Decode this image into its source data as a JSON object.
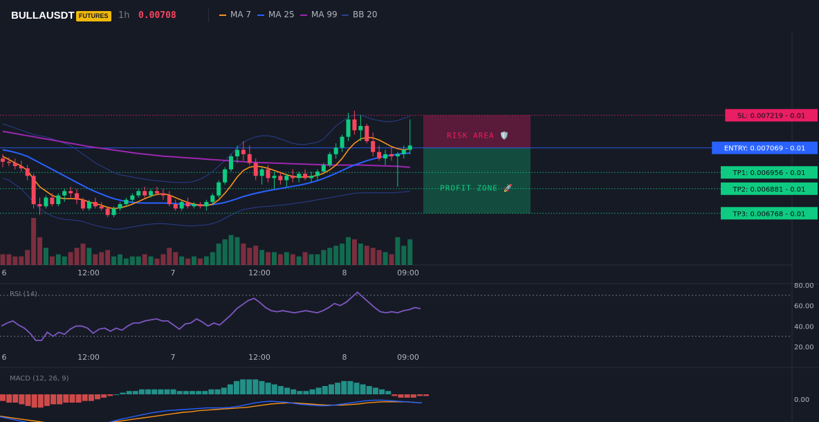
{
  "header": {
    "symbol": "BULLAUSDT",
    "badge": "FUTURES",
    "timeframe": "1h",
    "last_price": "0.00708"
  },
  "legend": [
    {
      "name": "MA 7",
      "color": "#f7931a"
    },
    {
      "name": "MA 25",
      "color": "#2962ff"
    },
    {
      "name": "MA 99",
      "color": "#9c27b0"
    },
    {
      "name": "BB 20",
      "color": "#2a3f8f"
    }
  ],
  "colors": {
    "up": "#0ecb81",
    "down": "#f6465d",
    "background": "#161a25",
    "grid": "#1e222d",
    "sl": "#e91e63",
    "entry": "#2962ff",
    "tp": "#0ecb81"
  },
  "chart_data": {
    "type": "candlestick",
    "x_ticks": [
      "6",
      "12:00",
      "7",
      "12:00",
      "8",
      "09:00"
    ],
    "price_range": [
      0.00653,
      0.0076
    ],
    "candles": [
      [
        0.00702,
        0.00704,
        0.00698,
        0.007005
      ],
      [
        0.007005,
        0.007025,
        0.006985,
        0.007
      ],
      [
        0.007,
        0.00702,
        0.00697,
        0.006985
      ],
      [
        0.006985,
        0.00701,
        0.00696,
        0.006975
      ],
      [
        0.006975,
        0.00699,
        0.00692,
        0.00694
      ],
      [
        0.00694,
        0.00695,
        0.00679,
        0.00681
      ],
      [
        0.00681,
        0.00684,
        0.00676,
        0.0068
      ],
      [
        0.0068,
        0.00685,
        0.00679,
        0.00684
      ],
      [
        0.00684,
        0.00686,
        0.0068,
        0.00681
      ],
      [
        0.00681,
        0.00686,
        0.0068,
        0.00685
      ],
      [
        0.00685,
        0.00688,
        0.00682,
        0.00687
      ],
      [
        0.00687,
        0.00689,
        0.00684,
        0.00686
      ],
      [
        0.00686,
        0.00688,
        0.00681,
        0.00683
      ],
      [
        0.00683,
        0.00684,
        0.00678,
        0.00679
      ],
      [
        0.00679,
        0.00683,
        0.00678,
        0.00682
      ],
      [
        0.00682,
        0.00684,
        0.00679,
        0.0068
      ],
      [
        0.0068,
        0.00682,
        0.00678,
        0.00679
      ],
      [
        0.00679,
        0.0068,
        0.00675,
        0.00676
      ],
      [
        0.00676,
        0.0068,
        0.00675,
        0.00679
      ],
      [
        0.00679,
        0.00682,
        0.00678,
        0.00681
      ],
      [
        0.00681,
        0.00684,
        0.0068,
        0.00683
      ],
      [
        0.00683,
        0.00686,
        0.00682,
        0.00685
      ],
      [
        0.00685,
        0.00688,
        0.00684,
        0.00687
      ],
      [
        0.00687,
        0.00689,
        0.00684,
        0.00685
      ],
      [
        0.00685,
        0.00688,
        0.00684,
        0.00687
      ],
      [
        0.00687,
        0.00689,
        0.00685,
        0.00686
      ],
      [
        0.00686,
        0.00688,
        0.00683,
        0.00685
      ],
      [
        0.00685,
        0.00687,
        0.0068,
        0.00681
      ],
      [
        0.00681,
        0.00683,
        0.00678,
        0.00679
      ],
      [
        0.00679,
        0.00683,
        0.00678,
        0.00682
      ],
      [
        0.00682,
        0.00684,
        0.00679,
        0.0068
      ],
      [
        0.0068,
        0.00682,
        0.00679,
        0.00681
      ],
      [
        0.00681,
        0.00682,
        0.00679,
        0.0068
      ],
      [
        0.0068,
        0.00683,
        0.00678,
        0.00682
      ],
      [
        0.00682,
        0.00686,
        0.00681,
        0.00685
      ],
      [
        0.00685,
        0.00692,
        0.00684,
        0.00691
      ],
      [
        0.00691,
        0.00698,
        0.0069,
        0.00697
      ],
      [
        0.00697,
        0.00704,
        0.00696,
        0.00703
      ],
      [
        0.00703,
        0.00708,
        0.007,
        0.00706
      ],
      [
        0.00706,
        0.0071,
        0.00701,
        0.00704
      ],
      [
        0.00704,
        0.00708,
        0.00699,
        0.007
      ],
      [
        0.007,
        0.00702,
        0.00692,
        0.00694
      ],
      [
        0.00694,
        0.00698,
        0.0069,
        0.00697
      ],
      [
        0.00697,
        0.00699,
        0.00691,
        0.00693
      ],
      [
        0.00693,
        0.00696,
        0.00688,
        0.00694
      ],
      [
        0.00694,
        0.00696,
        0.0069,
        0.00692
      ],
      [
        0.00692,
        0.00695,
        0.00689,
        0.00694
      ],
      [
        0.00694,
        0.00697,
        0.00691,
        0.00693
      ],
      [
        0.00693,
        0.00696,
        0.00691,
        0.00695
      ],
      [
        0.00695,
        0.00697,
        0.00692,
        0.00693
      ],
      [
        0.00693,
        0.00696,
        0.00691,
        0.00694
      ],
      [
        0.00694,
        0.00697,
        0.00692,
        0.00696
      ],
      [
        0.00696,
        0.007,
        0.00695,
        0.00699
      ],
      [
        0.00699,
        0.00705,
        0.00698,
        0.00704
      ],
      [
        0.00704,
        0.00709,
        0.00702,
        0.00707
      ],
      [
        0.00707,
        0.00713,
        0.00705,
        0.00712
      ],
      [
        0.00712,
        0.00723,
        0.0071,
        0.0072
      ],
      [
        0.0072,
        0.00724,
        0.00713,
        0.00715
      ],
      [
        0.00715,
        0.00722,
        0.0071,
        0.00717
      ],
      [
        0.00717,
        0.00718,
        0.00709,
        0.0071
      ],
      [
        0.0071,
        0.00714,
        0.00703,
        0.00705
      ],
      [
        0.00705,
        0.00708,
        0.00701,
        0.00702
      ],
      [
        0.00702,
        0.00706,
        0.00699,
        0.00704
      ],
      [
        0.00704,
        0.00707,
        0.00701,
        0.00703
      ],
      [
        0.00703,
        0.00705,
        0.00689,
        0.00704
      ],
      [
        0.00704,
        0.00708,
        0.00702,
        0.00706
      ],
      [
        0.00706,
        0.0072,
        0.00704,
        0.00708
      ]
    ],
    "volumes": [
      5,
      5,
      4,
      4,
      7,
      22,
      13,
      8,
      4,
      5,
      4,
      6,
      8,
      10,
      8,
      5,
      6,
      7,
      4,
      5,
      3,
      4,
      4,
      5,
      4,
      3,
      5,
      8,
      6,
      4,
      3,
      4,
      3,
      4,
      6,
      10,
      12,
      14,
      13,
      10,
      8,
      9,
      7,
      6,
      6,
      5,
      6,
      5,
      4,
      6,
      5,
      5,
      7,
      8,
      9,
      10,
      13,
      12,
      10,
      9,
      8,
      7,
      6,
      5,
      13,
      9,
      12
    ],
    "ma7": [
      0.00703,
      0.007015,
      0.007,
      0.006985,
      0.006965,
      0.006925,
      0.00689,
      0.00687,
      0.00685,
      0.00684,
      0.006835,
      0.006835,
      0.006835,
      0.00683,
      0.00682,
      0.006812,
      0.006805,
      0.006795,
      0.00679,
      0.006793,
      0.0068,
      0.00681,
      0.006822,
      0.006835,
      0.006847,
      0.006855,
      0.006858,
      0.006852,
      0.00684,
      0.006828,
      0.006818,
      0.00681,
      0.006805,
      0.006803,
      0.00681,
      0.00683,
      0.00686,
      0.006895,
      0.006935,
      0.006965,
      0.00698,
      0.006985,
      0.006982,
      0.006975,
      0.006965,
      0.006955,
      0.006945,
      0.006938,
      0.006935,
      0.006935,
      0.006937,
      0.006942,
      0.006952,
      0.006968,
      0.00699,
      0.00702,
      0.00706,
      0.00709,
      0.00711,
      0.007118,
      0.007115,
      0.007105,
      0.00709,
      0.007075,
      0.007065,
      0.00706,
      0.007065
    ],
    "ma25": [
      0.00706,
      0.007055,
      0.007048,
      0.00704,
      0.00703,
      0.007015,
      0.007,
      0.006985,
      0.00697,
      0.006955,
      0.00694,
      0.006925,
      0.00691,
      0.006895,
      0.00688,
      0.006868,
      0.006856,
      0.006845,
      0.006835,
      0.006828,
      0.006822,
      0.006818,
      0.006816,
      0.006815,
      0.006815,
      0.006815,
      0.006815,
      0.006814,
      0.006812,
      0.00681,
      0.006808,
      0.006806,
      0.006805,
      0.006806,
      0.006808,
      0.006812,
      0.006818,
      0.006826,
      0.006835,
      0.006845,
      0.006853,
      0.00686,
      0.006866,
      0.006872,
      0.006877,
      0.006882,
      0.006887,
      0.006892,
      0.006897,
      0.006903,
      0.00691,
      0.006918,
      0.006928,
      0.00694,
      0.006952,
      0.006965,
      0.006978,
      0.00699,
      0.007,
      0.00701,
      0.007018,
      0.007025,
      0.007031,
      0.007036,
      0.00704,
      0.007043,
      0.007045
    ],
    "ma99": [
      0.007145,
      0.00714,
      0.007135,
      0.00713,
      0.007125,
      0.00712,
      0.007115,
      0.00711,
      0.007105,
      0.0071,
      0.007095,
      0.00709,
      0.007085,
      0.00708,
      0.007075,
      0.007071,
      0.007067,
      0.007063,
      0.007059,
      0.007055,
      0.007051,
      0.007047,
      0.007043,
      0.00704,
      0.007037,
      0.007034,
      0.007031,
      0.007029,
      0.007027,
      0.007025,
      0.007023,
      0.007021,
      0.007019,
      0.007017,
      0.007015,
      0.007013,
      0.007011,
      0.007009,
      0.007007,
      0.007005,
      0.007003,
      0.007002,
      0.007001,
      0.007,
      0.006999,
      0.006998,
      0.006997,
      0.006996,
      0.006995,
      0.006994,
      0.006993,
      0.006992,
      0.006991,
      0.00699,
      0.00699,
      0.00699,
      0.00699,
      0.00699,
      0.00699,
      0.006989,
      0.006988,
      0.006987,
      0.006986,
      0.006985,
      0.006984,
      0.006982,
      0.00698
    ],
    "bb_upper": [
      0.00718,
      0.00717,
      0.00716,
      0.00715,
      0.00714,
      0.00713,
      0.007125,
      0.00712,
      0.00711,
      0.0071,
      0.00709,
      0.00708,
      0.00706,
      0.00704,
      0.00702,
      0.007,
      0.006985,
      0.00697,
      0.006955,
      0.006945,
      0.00694,
      0.006935,
      0.00693,
      0.006925,
      0.00692,
      0.006918,
      0.006915,
      0.006912,
      0.00691,
      0.00691,
      0.00691,
      0.006915,
      0.006925,
      0.00694,
      0.00696,
      0.006985,
      0.00701,
      0.00704,
      0.00707,
      0.007095,
      0.00711,
      0.00712,
      0.007125,
      0.007125,
      0.00712,
      0.00711,
      0.0071,
      0.00709,
      0.007085,
      0.007085,
      0.00709,
      0.007095,
      0.00711,
      0.00714,
      0.00717,
      0.00719,
      0.00721,
      0.00722,
      0.00722,
      0.00721,
      0.0072,
      0.007195,
      0.00719,
      0.00719,
      0.007195,
      0.007205,
      0.007215
    ],
    "bb_lower": [
      0.00693,
      0.00692,
      0.0069,
      0.00688,
      0.00685,
      0.00682,
      0.00679,
      0.00677,
      0.006755,
      0.006745,
      0.00674,
      0.006738,
      0.006735,
      0.00673,
      0.00672,
      0.006712,
      0.006705,
      0.0067,
      0.006695,
      0.006695,
      0.0067,
      0.006705,
      0.00671,
      0.006715,
      0.006718,
      0.00672,
      0.00672,
      0.006718,
      0.006715,
      0.006712,
      0.00671,
      0.00671,
      0.006712,
      0.006715,
      0.00672,
      0.00673,
      0.006745,
      0.00676,
      0.006775,
      0.006785,
      0.00679,
      0.006795,
      0.006798,
      0.0068,
      0.006802,
      0.006805,
      0.006808,
      0.006812,
      0.006816,
      0.00682,
      0.006825,
      0.00683,
      0.006835,
      0.00684,
      0.006845,
      0.00685,
      0.006855,
      0.00686,
      0.006862,
      0.006862,
      0.006862,
      0.006862,
      0.006862,
      0.006862,
      0.006864,
      0.006866,
      0.00687
    ],
    "levels": [
      {
        "label": "SL: 0.007219 - 0.01",
        "price": 0.007219,
        "color": "#e91e63"
      },
      {
        "label": "ENTRY: 0.007069 - 0.01",
        "price": 0.007069,
        "color": "#2962ff"
      },
      {
        "label": "TP1: 0.006956 - 0.01",
        "price": 0.006956,
        "color": "#0ecb81"
      },
      {
        "label": "TP2: 0.006881 - 0.01",
        "price": 0.006881,
        "color": "#0ecb81"
      },
      {
        "label": "TP3: 0.006768 - 0.01",
        "price": 0.006768,
        "color": "#0ecb81"
      }
    ],
    "zones": {
      "risk": "RISK AREA 🛡️",
      "profit": "PROFIT ZONE 🚀"
    },
    "rsi": {
      "title": "RSI (14)",
      "ticks": [
        "80.00",
        "60.00",
        "40.00",
        "20.00"
      ],
      "range": [
        20,
        80
      ],
      "levels": [
        70,
        30
      ],
      "values": [
        40,
        43,
        45,
        41,
        38,
        33,
        26,
        26,
        34,
        30,
        34,
        32,
        37,
        40,
        40,
        38,
        33,
        37,
        38,
        35,
        38,
        36,
        40,
        43,
        43,
        45,
        46,
        47,
        45,
        45,
        41,
        37,
        42,
        43,
        47,
        44,
        40,
        43,
        41,
        46,
        51,
        57,
        61,
        65,
        67,
        63,
        58,
        55,
        54,
        55,
        54,
        53,
        54,
        55,
        54,
        53,
        55,
        58,
        62,
        60,
        63,
        68,
        73,
        68,
        63,
        58,
        54,
        53,
        54,
        53,
        55,
        56,
        58,
        57
      ]
    },
    "macd": {
      "title": "MACD (12, 26, 9)",
      "tick": "0.00",
      "hist": [
        -4,
        -5,
        -5,
        -6,
        -7,
        -8,
        -8,
        -7,
        -6,
        -6,
        -5,
        -5,
        -5,
        -4,
        -4,
        -3,
        -2,
        -1,
        0,
        1,
        2,
        2,
        3,
        3,
        3,
        3,
        3,
        3,
        2,
        2,
        2,
        2,
        2,
        3,
        3,
        4,
        6,
        8,
        9,
        9,
        9,
        8,
        7,
        6,
        5,
        4,
        3,
        2,
        2,
        3,
        4,
        5,
        6,
        7,
        8,
        8,
        7,
        6,
        5,
        4,
        3,
        2,
        -1,
        -2,
        -2,
        -2,
        -1,
        -1
      ],
      "macd": [
        -3,
        -6,
        -9,
        -12,
        -15,
        -18,
        -20,
        -22,
        -23,
        -24,
        -24,
        -23,
        -20,
        -16,
        -12,
        -8,
        -5,
        -2,
        1,
        4,
        6,
        8,
        9,
        10,
        11,
        12,
        13,
        13,
        13,
        14,
        16,
        19,
        22,
        24,
        25,
        24,
        23,
        21,
        19,
        18,
        17,
        17,
        18,
        20,
        22,
        24,
        26,
        27,
        27,
        26,
        25,
        24,
        23,
        22
      ],
      "signal": [
        -2,
        -4,
        -6,
        -8,
        -10,
        -12,
        -14,
        -16,
        -17,
        -18,
        -18,
        -18,
        -17,
        -15,
        -13,
        -11,
        -9,
        -7,
        -5,
        -3,
        -1,
        1,
        3,
        5,
        6,
        8,
        9,
        10,
        11,
        12,
        13,
        14,
        16,
        18,
        20,
        21,
        22,
        22,
        21,
        20,
        19,
        18,
        18,
        18,
        19,
        20,
        22,
        23,
        24,
        24,
        24,
        24,
        23,
        22
      ]
    }
  }
}
